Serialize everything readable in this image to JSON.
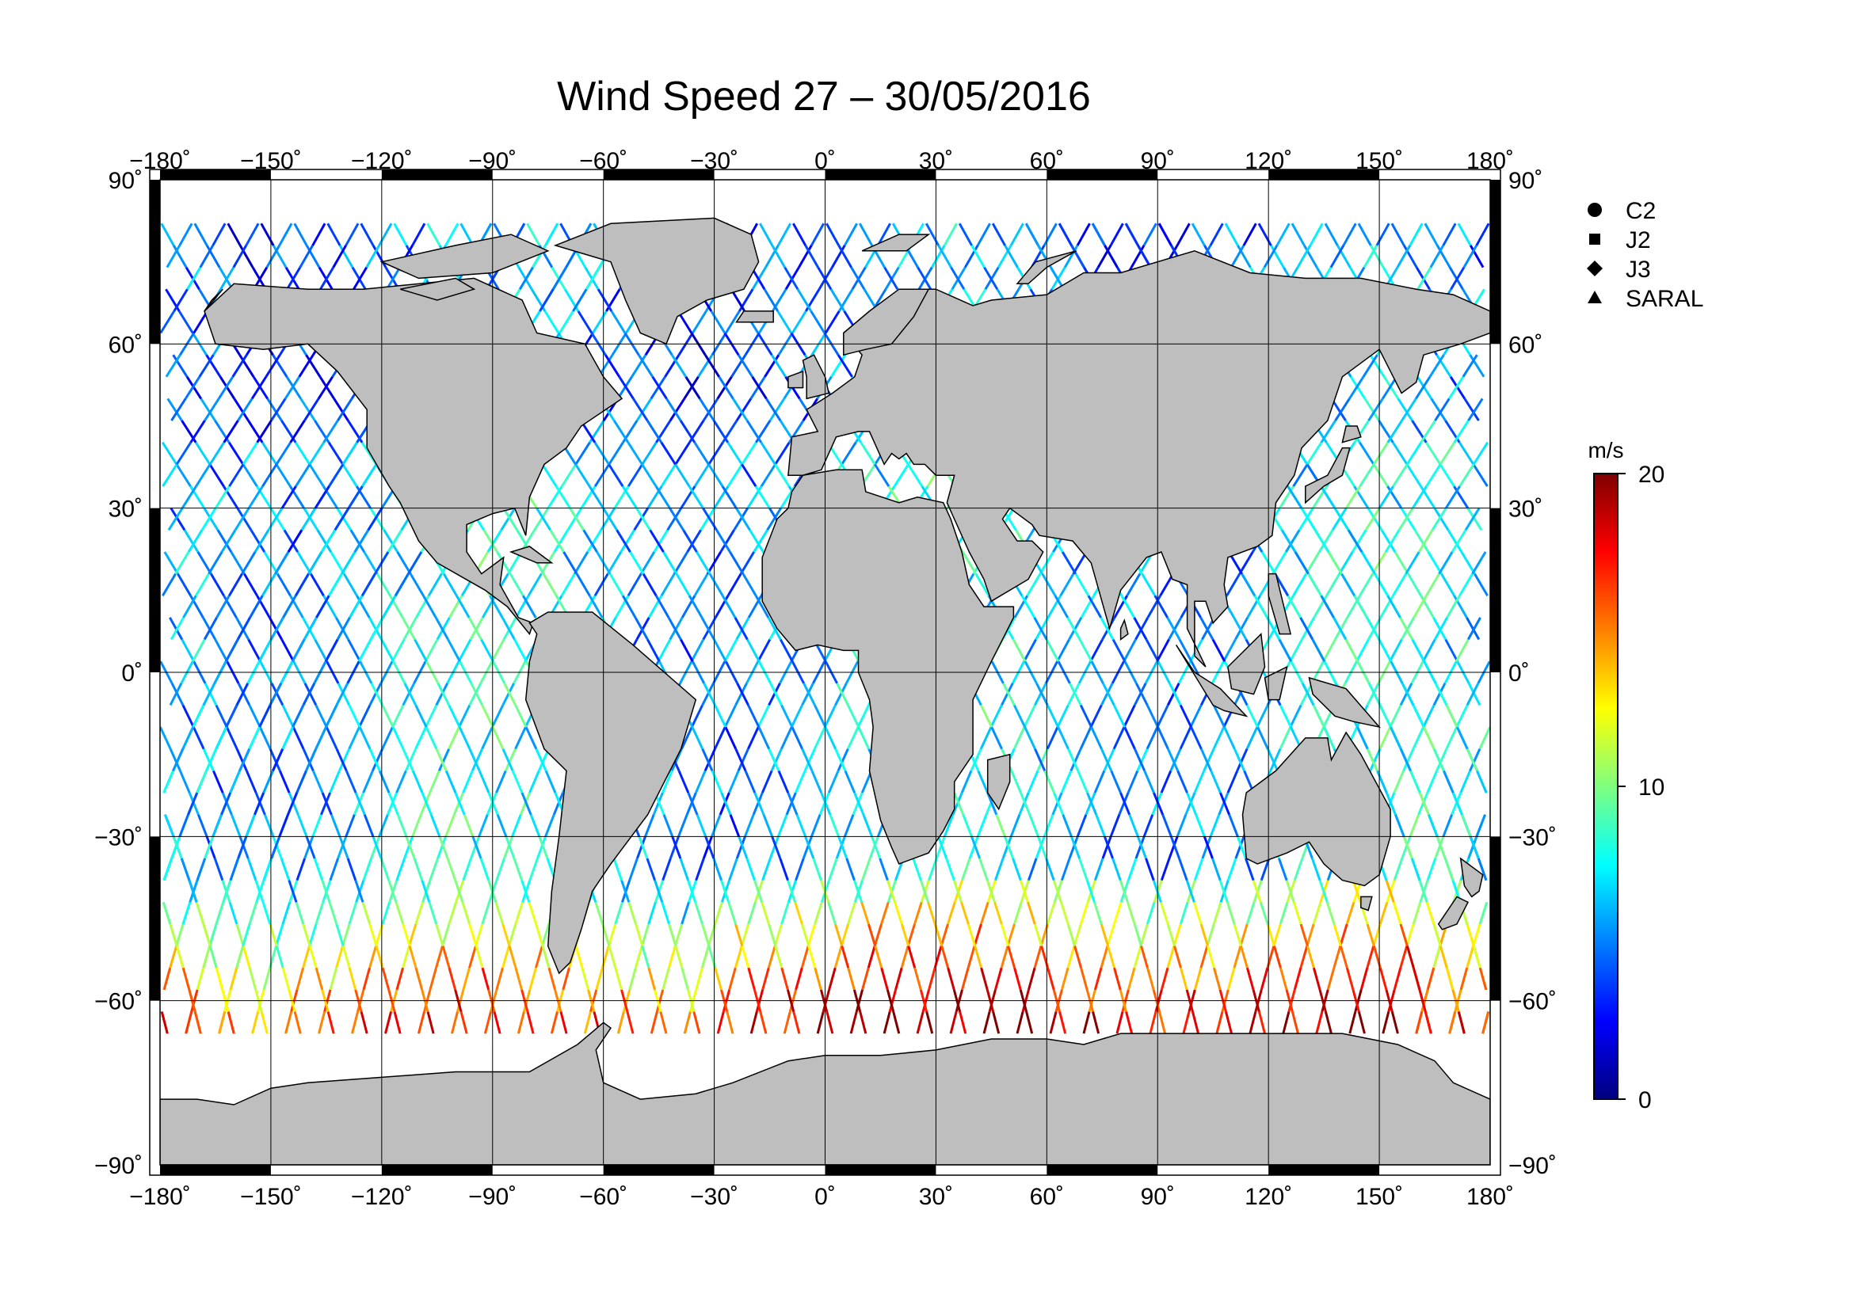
{
  "title": "Wind Speed 27 – 30/05/2016",
  "map": {
    "lon_ticks": [
      "−180˚",
      "−150˚",
      "−120˚",
      "−90˚",
      "−60˚",
      "−30˚",
      "0˚",
      "30˚",
      "60˚",
      "90˚",
      "120˚",
      "150˚",
      "180˚"
    ],
    "lon_values": [
      -180,
      -150,
      -120,
      -90,
      -60,
      -30,
      0,
      30,
      60,
      90,
      120,
      150,
      180
    ],
    "lat_ticks": [
      "90˚",
      "60˚",
      "30˚",
      "0˚",
      "−30˚",
      "−60˚",
      "−90˚"
    ],
    "lat_values": [
      90,
      60,
      30,
      0,
      -30,
      -60,
      -90
    ],
    "land_color": "#bebebe",
    "ocean_color": "#ffffff"
  },
  "legend": {
    "items": [
      {
        "label": "C2",
        "marker": "circle-icon"
      },
      {
        "label": "J2",
        "marker": "square-icon"
      },
      {
        "label": "J3",
        "marker": "diamond-icon"
      },
      {
        "label": "SARAL",
        "marker": "triangle-icon"
      }
    ]
  },
  "colorbar": {
    "unit": "m/s",
    "min": 0,
    "max": 20,
    "tick_labels": [
      "20",
      "10",
      "0"
    ],
    "tick_values": [
      20,
      10,
      0
    ],
    "colors": [
      "#00007f",
      "#0000ff",
      "#007fff",
      "#00ffff",
      "#7fff7f",
      "#ffff00",
      "#ff7f00",
      "#ff0000",
      "#7f0000"
    ]
  }
}
